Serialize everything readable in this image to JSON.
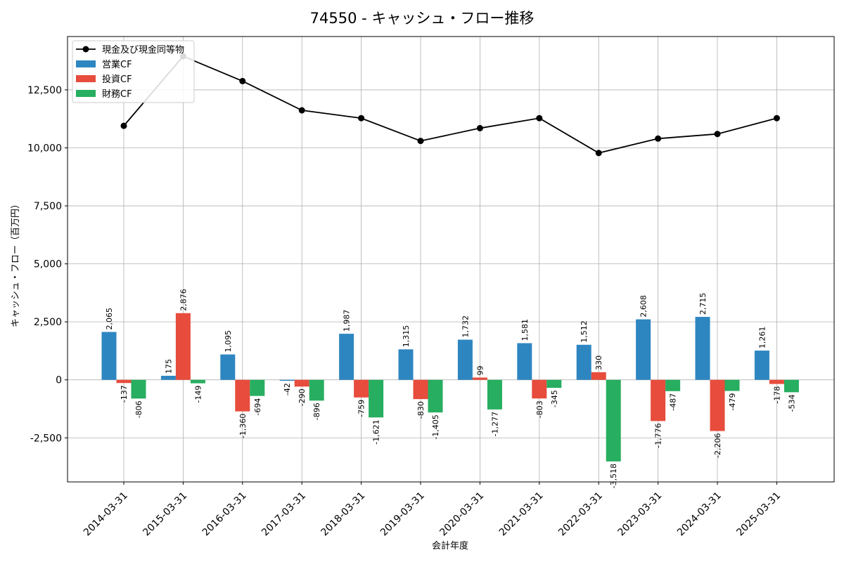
{
  "chart_data": {
    "type": "bar",
    "title": "74550 - キャッシュ・フロー推移",
    "xlabel": "会計年度",
    "ylabel": "キャッシュ・フロー（百万円）",
    "ylim": [
      -4400,
      14800
    ],
    "yticks": [
      -2500,
      0,
      2500,
      5000,
      7500,
      10000,
      12500
    ],
    "ytick_labels": [
      "-2,500",
      "0",
      "2,500",
      "5,000",
      "7,500",
      "10,000",
      "12,500"
    ],
    "grid": true,
    "legend_position": "top-left",
    "categories": [
      "2014-03-31",
      "2015-03-31",
      "2016-03-31",
      "2017-03-31",
      "2018-03-31",
      "2019-03-31",
      "2020-03-31",
      "2021-03-31",
      "2022-03-31",
      "2023-03-31",
      "2024-03-31",
      "2025-03-31"
    ],
    "series": [
      {
        "name": "営業CF",
        "kind": "bar",
        "color": "#2e86c1",
        "values": [
          2065,
          175,
          1095,
          -42,
          1987,
          1315,
          1732,
          1581,
          1512,
          2608,
          2715,
          1261
        ],
        "labels": [
          "2,065",
          "175",
          "1,095",
          "-42",
          "1,987",
          "1,315",
          "1,732",
          "1,581",
          "1,512",
          "2,608",
          "2,715",
          "1,261"
        ]
      },
      {
        "name": "投資CF",
        "kind": "bar",
        "color": "#e74c3c",
        "values": [
          -137,
          2876,
          -1360,
          -290,
          -759,
          -830,
          99,
          -803,
          330,
          -1776,
          -2206,
          -178
        ],
        "labels": [
          "-137",
          "2,876",
          "-1,360",
          "-290",
          "-759",
          "-830",
          "99",
          "-803",
          "330",
          "-1,776",
          "-2,206",
          "-178"
        ]
      },
      {
        "name": "財務CF",
        "kind": "bar",
        "color": "#27ae60",
        "values": [
          -806,
          -149,
          -694,
          -896,
          -1621,
          -1405,
          -1277,
          -345,
          -3518,
          -487,
          -479,
          -534
        ],
        "labels": [
          "-806",
          "-149",
          "-694",
          "-896",
          "-1,621",
          "-1,405",
          "-1,277",
          "-345",
          "-3,518",
          "-487",
          "-479",
          "-534"
        ]
      },
      {
        "name": "現金及び現金同等物",
        "kind": "line",
        "color": "#000000",
        "values": [
          10950,
          13950,
          12880,
          11620,
          11280,
          10300,
          10850,
          11280,
          9780,
          10400,
          10600,
          11280
        ]
      }
    ]
  }
}
